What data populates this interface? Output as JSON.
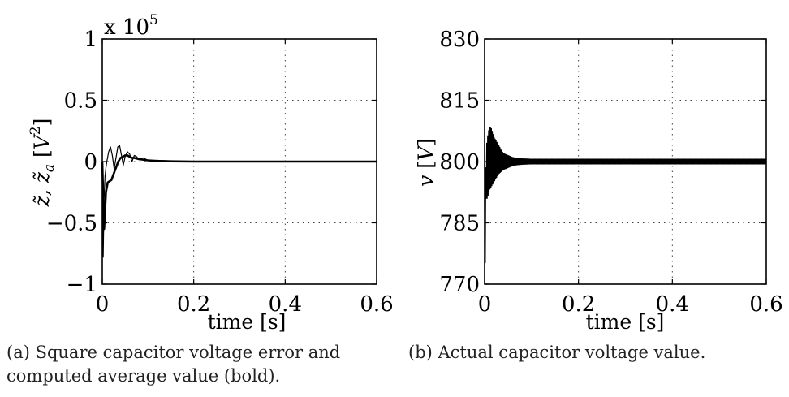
{
  "chart_data": [
    {
      "type": "line",
      "ylabel_parts": [
        "z̃, z̃",
        "a",
        " [",
        "V",
        "2",
        "]"
      ],
      "xlabel": "time [s]",
      "multiplier_parts": [
        "x 10",
        "5"
      ],
      "xlim": [
        0,
        0.6
      ],
      "ylim": [
        -1,
        1
      ],
      "x_ticks": [
        0,
        0.2,
        0.4,
        0.6
      ],
      "x_tick_labels": [
        "0",
        "0.2",
        "0.4",
        "0.6"
      ],
      "y_ticks": [
        -1,
        -0.5,
        0,
        0.5,
        1
      ],
      "y_tick_labels": [
        "−1",
        "−0.5",
        "0",
        "0.5",
        "1"
      ],
      "grid": true,
      "series": [
        {
          "width": "thin",
          "x": [
            0,
            0.002,
            0.004,
            0.006,
            0.008,
            0.01,
            0.014,
            0.018,
            0.022,
            0.026,
            0.03,
            0.034,
            0.038,
            0.042,
            0.046,
            0.05,
            0.055,
            0.06,
            0.065,
            0.07,
            0.075,
            0.08,
            0.09,
            0.1,
            0.12,
            0.15,
            0.2,
            0.3,
            0.6
          ],
          "y": [
            0,
            -0.78,
            -0.3,
            -0.12,
            -0.05,
            0.0,
            0.08,
            0.12,
            0.05,
            -0.06,
            0.03,
            0.12,
            0.13,
            0.05,
            -0.03,
            0.04,
            0.08,
            0.06,
            0.0,
            0.05,
            0.04,
            0.02,
            0.03,
            0.01,
            0.01,
            0.005,
            0,
            0,
            0
          ]
        },
        {
          "width": "bold",
          "x": [
            0,
            0.004,
            0.008,
            0.012,
            0.016,
            0.02,
            0.025,
            0.03,
            0.035,
            0.04,
            0.045,
            0.05,
            0.055,
            0.06,
            0.065,
            0.07,
            0.08,
            0.09,
            0.1,
            0.12,
            0.15,
            0.2,
            0.6
          ],
          "y": [
            0,
            -0.55,
            -0.25,
            -0.17,
            -0.16,
            -0.15,
            -0.1,
            -0.05,
            0.0,
            0.03,
            0.04,
            0.05,
            0.05,
            0.04,
            0.03,
            0.03,
            0.02,
            0.015,
            0.01,
            0.005,
            0.002,
            0,
            0
          ]
        }
      ]
    },
    {
      "type": "line",
      "ylabel_parts": [
        "v",
        " [",
        "V",
        "]"
      ],
      "xlabel": "time [s]",
      "xlim": [
        0,
        0.6
      ],
      "ylim": [
        770,
        830
      ],
      "x_ticks": [
        0,
        0.2,
        0.4,
        0.6
      ],
      "x_tick_labels": [
        "0",
        "0.2",
        "0.4",
        "0.6"
      ],
      "y_ticks": [
        770,
        785,
        800,
        815,
        830
      ],
      "y_tick_labels": [
        "770",
        "785",
        "800",
        "815",
        "830"
      ],
      "grid": true,
      "series": [
        {
          "width": "thin",
          "envelope_x": [
            0,
            0.001,
            0.003,
            0.006,
            0.01,
            0.015,
            0.02,
            0.025,
            0.03,
            0.035,
            0.04,
            0.05,
            0.06,
            0.07,
            0.08,
            0.1,
            0.6
          ],
          "envelope_upper": [
            775,
            785,
            803,
            806,
            808.5,
            808,
            806,
            805,
            804,
            803,
            802,
            801.5,
            801,
            800.8,
            800.7,
            800.6,
            800.6
          ],
          "envelope_lower": [
            775,
            770,
            791,
            791,
            793,
            794,
            795,
            796,
            797,
            797.5,
            798,
            798.5,
            799,
            799.2,
            799.3,
            799.4,
            799.4
          ],
          "oscillation_period": 0.002
        }
      ]
    }
  ],
  "captions": {
    "a": "(a) Square capacitor voltage error and computed average value (bold).",
    "b": "(b) Actual capacitor voltage value."
  }
}
